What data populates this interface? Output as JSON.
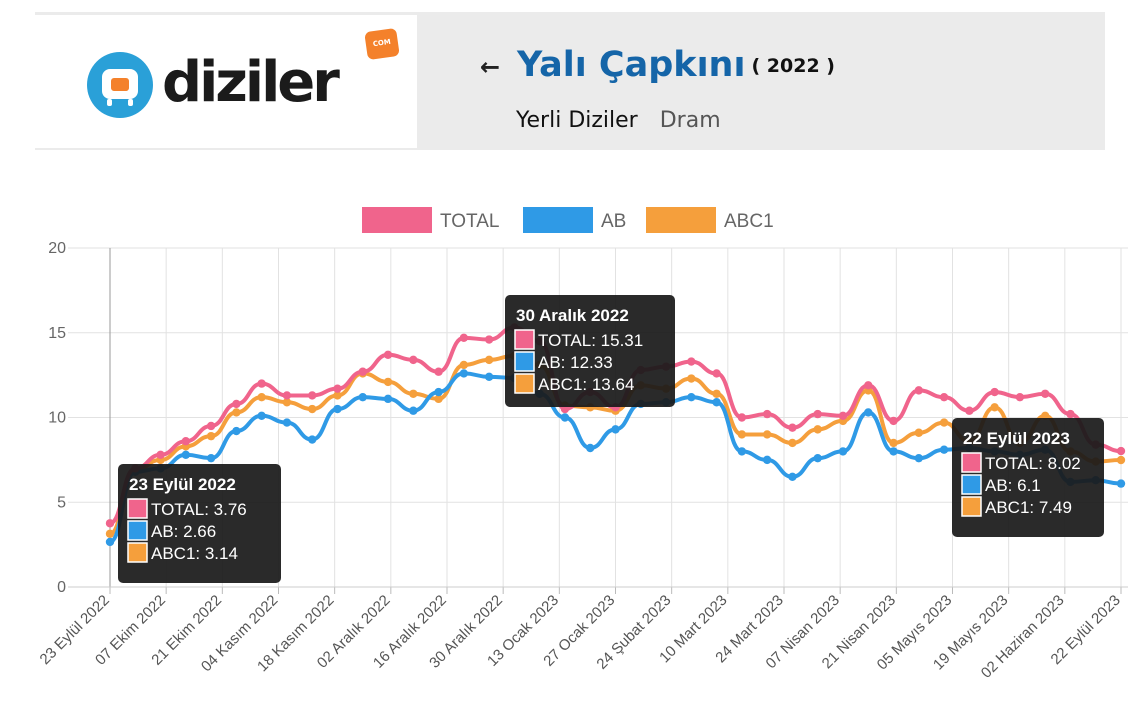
{
  "header": {
    "logo_text": "diziler",
    "logo_badge": "COM",
    "title": "Yalı Çapkını",
    "year": "( 2022 )",
    "category": "Yerli Diziler",
    "genre": "Dram"
  },
  "chart_data": {
    "type": "line",
    "title": "",
    "xlabel": "",
    "ylabel": "",
    "ylim": [
      0,
      20
    ],
    "yticks": [
      0,
      5,
      10,
      15,
      20
    ],
    "grid": true,
    "legend_position": "top-center",
    "x_tick_labels": [
      "23 Eylül 2022",
      "07 Ekim 2022",
      "21 Ekim 2022",
      "04 Kasım 2022",
      "18 Kasım 2022",
      "02 Aralık 2022",
      "16 Aralık 2022",
      "30 Aralık 2022",
      "13 Ocak 2023",
      "27 Ocak 2023",
      "24 Şubat 2023",
      "10 Mart 2023",
      "24 Mart 2023",
      "07 Nisan 2023",
      "21 Nisan 2023",
      "05 Mayıs 2023",
      "19 Mayıs 2023",
      "02 Haziran 2023",
      "22 Eylül 2023"
    ],
    "series": [
      {
        "name": "TOTAL",
        "color": "#f0648c",
        "values": [
          3.76,
          7.0,
          7.8,
          8.6,
          9.5,
          10.8,
          12.0,
          11.3,
          11.3,
          11.7,
          12.7,
          13.7,
          13.4,
          12.7,
          14.7,
          14.6,
          15.31,
          14.5,
          10.5,
          11.5,
          10.6,
          12.8,
          13.0,
          13.3,
          12.6,
          10.0,
          10.2,
          9.4,
          10.2,
          10.1,
          11.9,
          9.8,
          11.6,
          11.2,
          10.4,
          11.5,
          11.2,
          11.4,
          10.2,
          8.4,
          8.02
        ]
      },
      {
        "name": "AB",
        "color": "#2f9ae6",
        "values": [
          2.66,
          6.8,
          7.0,
          7.8,
          7.6,
          9.2,
          10.1,
          9.7,
          8.7,
          10.5,
          11.2,
          11.1,
          10.4,
          11.5,
          12.6,
          12.4,
          12.33,
          11.4,
          10.0,
          8.2,
          9.3,
          10.8,
          10.9,
          11.2,
          10.9,
          8.0,
          7.5,
          6.5,
          7.6,
          8.0,
          10.3,
          8.0,
          7.6,
          8.1,
          8.2,
          8.0,
          7.8,
          8.1,
          6.2,
          6.3,
          6.1
        ]
      },
      {
        "name": "ABC1",
        "color": "#f59f3c",
        "values": [
          3.14,
          6.9,
          7.5,
          8.3,
          8.9,
          10.3,
          11.2,
          10.9,
          10.5,
          11.3,
          12.6,
          12.1,
          11.4,
          11.1,
          13.1,
          13.4,
          13.64,
          13.1,
          10.7,
          10.6,
          10.4,
          11.9,
          11.7,
          12.3,
          11.4,
          9.0,
          9.0,
          8.5,
          9.3,
          9.8,
          11.6,
          8.5,
          9.1,
          9.7,
          8.6,
          10.6,
          8.5,
          10.1,
          8.0,
          7.4,
          7.49
        ]
      }
    ],
    "tooltips": [
      {
        "date": "23 Eylül 2022",
        "lines": [
          "TOTAL: 3.76",
          "AB: 2.66",
          "ABC1: 3.14"
        ]
      },
      {
        "date": "30 Aralık 2022",
        "lines": [
          "TOTAL: 15.31",
          "AB: 12.33",
          "ABC1: 13.64"
        ]
      },
      {
        "date": "22 Eylül 2023",
        "lines": [
          "TOTAL: 8.02",
          "AB: 6.1",
          "ABC1: 7.49"
        ]
      }
    ]
  }
}
